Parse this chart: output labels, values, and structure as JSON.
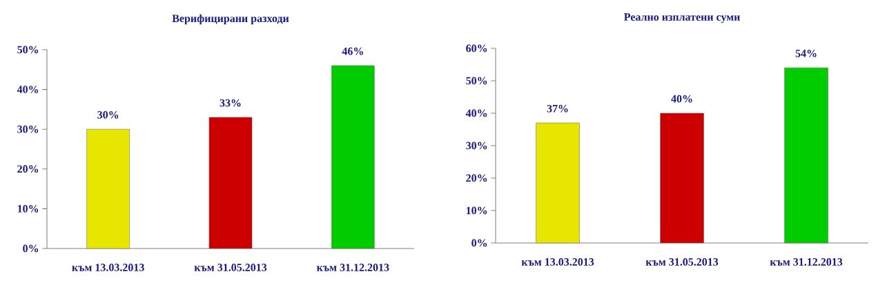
{
  "chart_data": [
    {
      "type": "bar",
      "title": "Верифицирани разходи",
      "categories": [
        "към 13.03.2013",
        "към 31.05.2013",
        "към 31.12.2013"
      ],
      "values": [
        30,
        33,
        46
      ],
      "value_labels": [
        "30%",
        "33%",
        "46%"
      ],
      "colors": [
        "#e6e600",
        "#cc0000",
        "#00cc00"
      ],
      "ylim": [
        0,
        50
      ],
      "yticks": [
        {
          "value": 0,
          "label": "0%"
        },
        {
          "value": 10,
          "label": "10%"
        },
        {
          "value": 20,
          "label": "20%"
        },
        {
          "value": 30,
          "label": "30%"
        },
        {
          "value": 40,
          "label": "40%"
        },
        {
          "value": 50,
          "label": "50%"
        }
      ],
      "grid": false
    },
    {
      "type": "bar",
      "title": "Реално изплатени суми",
      "categories": [
        "към 13.03.2013",
        "към 31.05.2013",
        "към 31.12.2013"
      ],
      "values": [
        37,
        40,
        54
      ],
      "value_labels": [
        "37%",
        "40%",
        "54%"
      ],
      "colors": [
        "#e6e600",
        "#cc0000",
        "#00cc00"
      ],
      "ylim": [
        0,
        60
      ],
      "yticks": [
        {
          "value": 0,
          "label": "0%"
        },
        {
          "value": 10,
          "label": "10%"
        },
        {
          "value": 20,
          "label": "20%"
        },
        {
          "value": 30,
          "label": "30%"
        },
        {
          "value": 40,
          "label": "40%"
        },
        {
          "value": 50,
          "label": "50%"
        },
        {
          "value": 60,
          "label": "60%"
        }
      ],
      "grid": false
    }
  ]
}
